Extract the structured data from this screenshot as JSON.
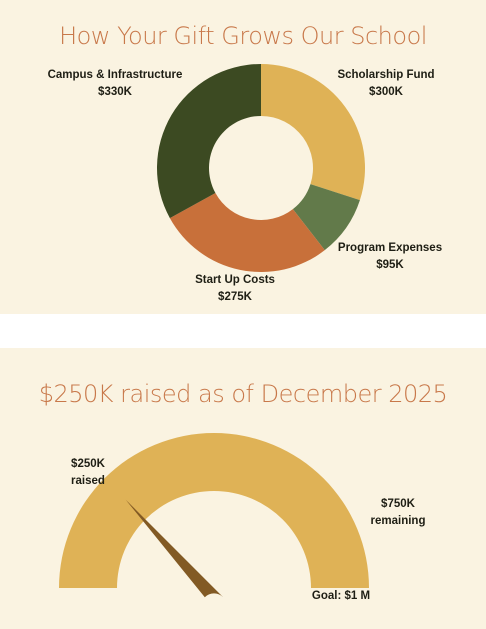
{
  "donut": {
    "title": "How Your Gift Grows Our School"
  },
  "gauge": {
    "title": "$250K raised as of December 2025",
    "raised_label": "$250K",
    "raised_sub": "raised",
    "remaining_label": "$750K",
    "remaining_sub": "remaining",
    "goal_label": "Goal: $1 M",
    "colors": {
      "track": "#dfb256",
      "needle": "#825a24"
    }
  },
  "chart_data": [
    {
      "type": "pie",
      "title": "How Your Gift Grows Our School",
      "donut": true,
      "slices": [
        {
          "name": "Scholarship Fund",
          "value": 300,
          "label": "$300K",
          "color": "#dfb256"
        },
        {
          "name": "Program Expenses",
          "value": 95,
          "label": "$95K",
          "color": "#627a4a"
        },
        {
          "name": "Start Up Costs",
          "value": 275,
          "label": "$275K",
          "color": "#c8703a"
        },
        {
          "name": "Campus & Infrastructure",
          "value": 330,
          "label": "$330K",
          "color": "#3c4a22"
        }
      ],
      "units": "$K"
    },
    {
      "type": "gauge",
      "title": "$250K raised as of December 2025",
      "value": 250,
      "max": 1000,
      "units": "$K",
      "annotations": [
        "$250K raised",
        "$750K remaining",
        "Goal: $1 M"
      ]
    }
  ]
}
